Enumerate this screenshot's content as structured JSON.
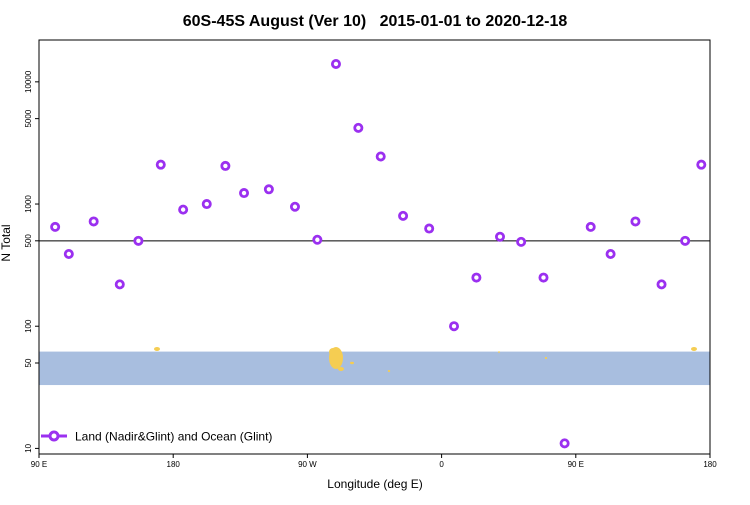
{
  "chart_data": {
    "type": "scatter",
    "title": "60S-45S August (Ver 10)   2015-01-01 to 2020-12-18",
    "xlabel": "Longitude (deg E)",
    "ylabel": "N Total",
    "y_scale": "log",
    "xlim": [
      -90,
      180
    ],
    "ylim": [
      9,
      22000
    ],
    "x_ticks": [
      {
        "value": -90,
        "label": "90 E"
      },
      {
        "value": -36,
        "label": "180"
      },
      {
        "value": 18,
        "label": "90 W"
      },
      {
        "value": 72,
        "label": "0"
      },
      {
        "value": 126,
        "label": "90 E"
      },
      {
        "value": 180,
        "label": "180"
      }
    ],
    "y_ticks": [
      {
        "value": 10,
        "label": "10"
      },
      {
        "value": 50,
        "label": "50"
      },
      {
        "value": 100,
        "label": "100"
      },
      {
        "value": 500,
        "label": "500"
      },
      {
        "value": 1000,
        "label": "1000"
      },
      {
        "value": 5000,
        "label": "5000"
      },
      {
        "value": 10000,
        "label": "10000"
      }
    ],
    "reference_line": 500,
    "map_band": {
      "y_min": 33,
      "y_max": 62,
      "ocean_color": "#a8bedf",
      "land_color": "#f5cd52"
    },
    "series": [
      {
        "name": "Land (Nadir&Glint) and Ocean (Glint)",
        "color": "#9b30f0",
        "legend_position": "bottom-left",
        "x": [
          -83.5,
          -78,
          -68,
          -57.5,
          -50,
          -41,
          -32,
          -22.5,
          -15,
          -7.5,
          2.5,
          13,
          22,
          29.5,
          38.5,
          47.5,
          56.5,
          67,
          77,
          86,
          95.5,
          104,
          113,
          121.5,
          132,
          140,
          150,
          160.5,
          170,
          176.5
        ],
        "values": [
          650,
          390,
          720,
          220,
          500,
          2100,
          900,
          1000,
          2050,
          1230,
          1320,
          950,
          510,
          14000,
          4200,
          2450,
          800,
          630,
          100,
          250,
          540,
          490,
          250,
          11,
          650,
          390,
          720,
          220,
          500,
          2100
        ]
      }
    ]
  }
}
